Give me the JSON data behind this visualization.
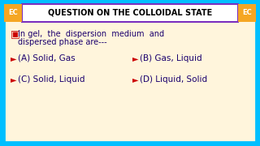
{
  "title": "QUESTION ON THE COLLOIDAL STATE",
  "question_line1": "In gel,  the  dispersion  medium  and",
  "question_line2": "dispersed phase are---",
  "option_A": "(A) Solid, Gas",
  "option_B": "(B) Gas, Liquid",
  "option_C": "(C) Solid, Liquid",
  "option_D": "(D) Liquid, Solid",
  "bg_color": "#00BFFF",
  "card_color": "#FFF5DC",
  "title_bg": "#FFFFFF",
  "title_border": "#7B2FBE",
  "title_color": "#000000",
  "question_color": "#1a006e",
  "option_color": "#1a006e",
  "arrow_color": "#cc0000",
  "checkbox_color": "#cc0000",
  "ec_bg": "#F5A623",
  "ec_text": "#FFFFFF",
  "card_border": "#00BFFF"
}
